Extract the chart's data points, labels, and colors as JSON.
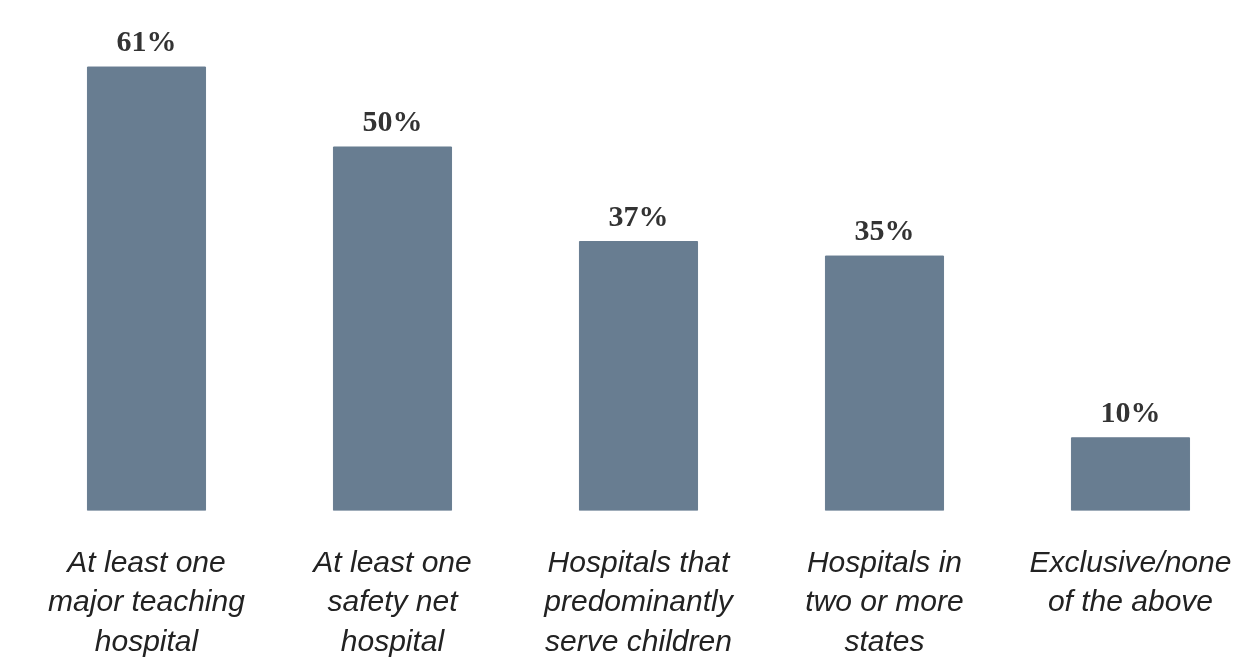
{
  "chart_data": {
    "type": "bar",
    "categories": [
      "At least one major teaching hospital",
      "At least one safety net hospital",
      "Hospitals that predominantly serve children",
      "Hospitals in two or more states",
      "Exclusive/none of the above"
    ],
    "values": [
      61,
      50,
      37,
      35,
      10
    ],
    "value_labels": [
      "61%",
      "50%",
      "37%",
      "35%",
      "10%"
    ],
    "color": "#687d91",
    "grid": false
  }
}
